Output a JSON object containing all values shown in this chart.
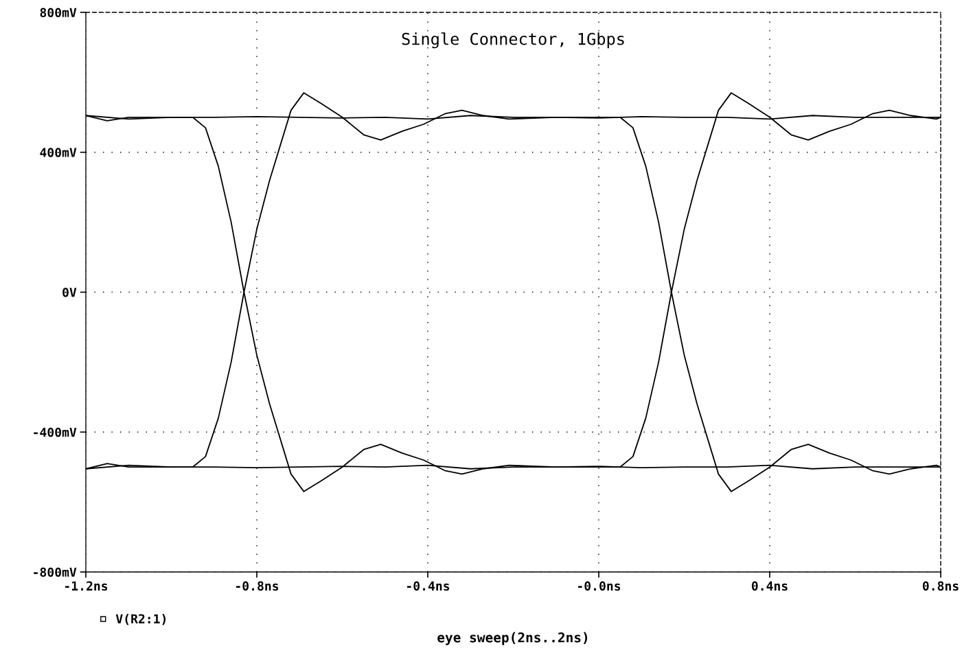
{
  "chart_data": {
    "type": "line",
    "title": "Single Connector, 1Gbps",
    "xlabel": "eye sweep(2ns..2ns)",
    "xlim": [
      -1.2,
      0.8
    ],
    "ylim": [
      -800,
      800
    ],
    "xticks": [
      {
        "value": -1.2,
        "label": "-1.2ns"
      },
      {
        "value": -0.8,
        "label": "-0.8ns"
      },
      {
        "value": -0.4,
        "label": "-0.4ns"
      },
      {
        "value": 0.0,
        "label": "-0.0ns"
      },
      {
        "value": 0.4,
        "label": "0.4ns"
      },
      {
        "value": 0.8,
        "label": "0.8ns"
      }
    ],
    "yticks": [
      {
        "value": -800,
        "label": "-800mV"
      },
      {
        "value": -400,
        "label": "-400mV"
      },
      {
        "value": 0,
        "label": "0V"
      },
      {
        "value": 400,
        "label": "400mV"
      },
      {
        "value": 800,
        "label": "800mV"
      }
    ],
    "grid": true,
    "legend": "bottom left",
    "marker": "none",
    "line_style": "solid",
    "series": [
      {
        "name": "V(R2:1)",
        "color": "#000000",
        "x": [
          -1.2,
          -1.15,
          -1.1,
          -1.0,
          -0.95,
          -0.92,
          -0.89,
          -0.86,
          -0.83,
          -0.8,
          -0.77,
          -0.74,
          -0.72,
          -0.69,
          -0.65,
          -0.6,
          -0.55,
          -0.51,
          -0.46,
          -0.41,
          -0.36,
          -0.32,
          -0.27,
          -0.21,
          -0.1,
          0.0,
          0.05,
          0.08,
          0.11,
          0.14,
          0.17,
          0.2,
          0.23,
          0.26,
          0.28,
          0.31,
          0.35,
          0.4,
          0.45,
          0.49,
          0.54,
          0.59,
          0.64,
          0.68,
          0.73,
          0.79,
          0.8
        ],
        "values": [
          505,
          490,
          500,
          500,
          500,
          470,
          360,
          200,
          0,
          -180,
          -320,
          -440,
          -520,
          -570,
          -540,
          -500,
          -450,
          -435,
          -460,
          -480,
          -510,
          -520,
          -505,
          -495,
          -500,
          -500,
          -500,
          -470,
          -360,
          -200,
          0,
          180,
          320,
          440,
          520,
          570,
          540,
          500,
          450,
          435,
          460,
          480,
          510,
          520,
          505,
          495,
          500
        ]
      },
      {
        "color": "#000000",
        "x": [
          -1.2,
          -1.15,
          -1.1,
          -1.0,
          -0.95,
          -0.92,
          -0.89,
          -0.86,
          -0.83,
          -0.8,
          -0.77,
          -0.74,
          -0.72,
          -0.69,
          -0.65,
          -0.6,
          -0.55,
          -0.51,
          -0.46,
          -0.41,
          -0.36,
          -0.32,
          -0.27,
          -0.21,
          -0.1,
          0.0,
          0.05,
          0.08,
          0.11,
          0.14,
          0.17,
          0.2,
          0.23,
          0.26,
          0.28,
          0.31,
          0.35,
          0.4,
          0.45,
          0.49,
          0.54,
          0.59,
          0.64,
          0.68,
          0.73,
          0.79,
          0.8
        ],
        "values": [
          -505,
          -490,
          -500,
          -500,
          -500,
          -470,
          -360,
          -200,
          0,
          180,
          320,
          440,
          520,
          570,
          540,
          500,
          450,
          435,
          460,
          480,
          510,
          520,
          505,
          495,
          500,
          500,
          500,
          470,
          360,
          200,
          0,
          -180,
          -320,
          -440,
          -520,
          -570,
          -540,
          -500,
          -450,
          -435,
          -460,
          -480,
          -510,
          -520,
          -505,
          -495,
          -500
        ]
      },
      {
        "color": "#000000",
        "x": [
          -1.2,
          -1.1,
          -1.0,
          -0.9,
          -0.8,
          -0.7,
          -0.6,
          -0.5,
          -0.4,
          -0.3,
          -0.2,
          -0.1,
          0.0,
          0.1,
          0.2,
          0.3,
          0.4,
          0.5,
          0.6,
          0.7,
          0.8
        ],
        "values": [
          505,
          495,
          500,
          500,
          502,
          500,
          498,
          500,
          495,
          505,
          500,
          500,
          498,
          502,
          500,
          500,
          495,
          505,
          500,
          500,
          500
        ]
      },
      {
        "color": "#000000",
        "x": [
          -1.2,
          -1.1,
          -1.0,
          -0.9,
          -0.8,
          -0.7,
          -0.6,
          -0.5,
          -0.4,
          -0.3,
          -0.2,
          -0.1,
          0.0,
          0.1,
          0.2,
          0.3,
          0.4,
          0.5,
          0.6,
          0.7,
          0.8
        ],
        "values": [
          -505,
          -495,
          -500,
          -500,
          -502,
          -500,
          -498,
          -500,
          -495,
          -505,
          -500,
          -500,
          -498,
          -502,
          -500,
          -500,
          -495,
          -505,
          -500,
          -500,
          -500
        ]
      }
    ]
  }
}
